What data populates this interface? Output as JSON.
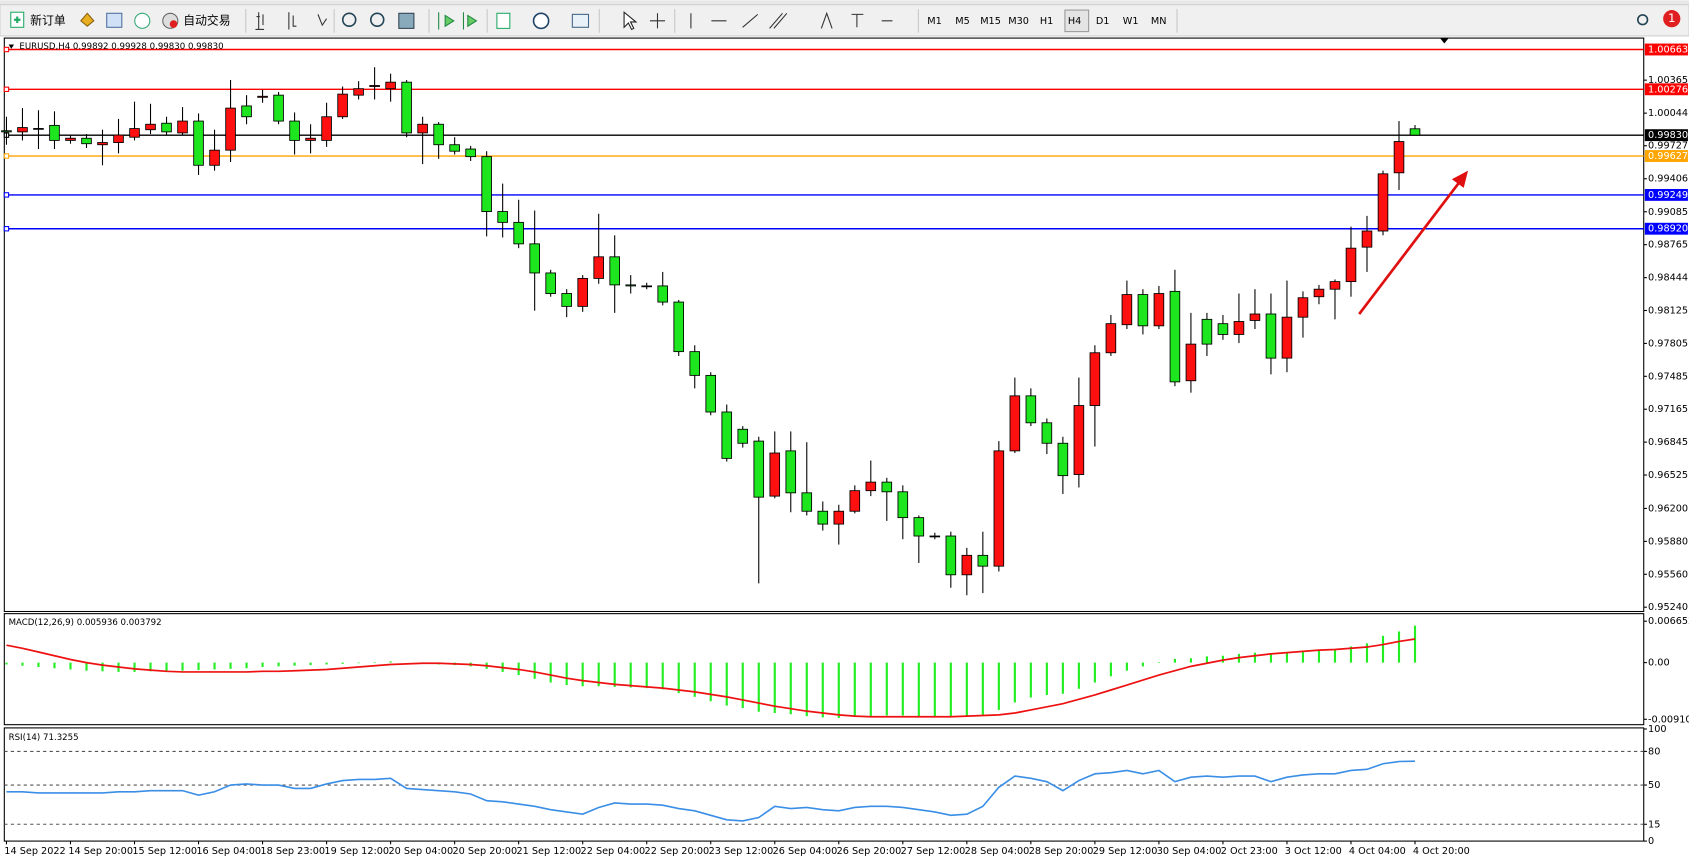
{
  "toolbar": {
    "new_order": "新订单",
    "auto_trading": "自动交易",
    "timeframes": [
      "M1",
      "M5",
      "M15",
      "M30",
      "H1",
      "H4",
      "D1",
      "W1",
      "MN"
    ],
    "badge": "1"
  },
  "chart_data": [
    {
      "type": "candlestick",
      "title": "EURUSD,H4  0.99892 0.99928 0.99830 0.99830",
      "categories": [
        "14 Sep 2022",
        null,
        null,
        null,
        "14 Sep 20:00",
        null,
        null,
        null,
        "15 Sep 12:00",
        null,
        null,
        null,
        "16 Sep 04:00",
        null,
        null,
        null,
        "18 Sep 23:00",
        null,
        null,
        null,
        "19 Sep 12:00",
        null,
        null,
        null,
        "20 Sep 04:00",
        null,
        null,
        null,
        "20 Sep 20:00",
        null,
        null,
        null,
        "21 Sep 12:00",
        null,
        null,
        null,
        "22 Sep 04:00",
        null,
        null,
        null,
        "22 Sep 20:00",
        null,
        null,
        null,
        "23 Sep 12:00",
        null,
        null,
        null,
        "26 Sep 04:00",
        null,
        null,
        null,
        "26 Sep 20:00",
        null,
        null,
        null,
        "27 Sep 12:00",
        null,
        null,
        null,
        "28 Sep 04:00",
        null,
        null,
        null,
        "28 Sep 20:00",
        null,
        null,
        null,
        "29 Sep 12:00",
        null,
        null,
        null,
        "30 Sep 04:00",
        null,
        null,
        null,
        "2 Oct 23:00",
        null,
        null,
        null,
        "3 Oct 12:00",
        null,
        null,
        null,
        "4 Oct 04:00",
        null,
        null,
        null,
        "4 Oct 20:00"
      ],
      "open": [
        0.99873,
        0.99862,
        0.99894,
        0.99925,
        0.99779,
        0.998,
        0.99737,
        0.99758,
        0.9981,
        0.99883,
        0.99946,
        0.99852,
        0.99967,
        0.99537,
        0.99684,
        1.00114,
        1.00198,
        1.00219,
        0.99967,
        0.99779,
        0.99779,
        1.00009,
        1.00219,
        1.00303,
        1.00282,
        1.00345,
        0.99852,
        0.99936,
        0.99737,
        0.99695,
        0.99621,
        0.99087,
        0.98982,
        0.98773,
        0.9849,
        0.9829,
        0.98165,
        0.98437,
        0.98647,
        0.98374,
        0.98364,
        0.98364,
        0.98207,
        0.97725,
        0.97494,
        0.97138,
        0.9697,
        0.96855,
        0.9632,
        0.9676,
        0.96352,
        0.96173,
        0.96048,
        0.96173,
        0.96373,
        0.96456,
        0.96362,
        0.96111,
        0.95932,
        0.95932,
        0.95555,
        0.95744,
        0.95639,
        0.9676,
        0.97295,
        0.97033,
        0.96834,
        0.9653,
        0.97201,
        0.97714,
        0.97987,
        0.9828,
        0.97976,
        0.98311,
        0.97442,
        0.98039,
        0.97997,
        0.97892,
        0.98028,
        0.98091,
        0.97662,
        0.9806,
        0.98259,
        0.98332,
        0.98406,
        0.98741,
        0.98898,
        0.99464,
        0.99892
      ],
      "high": [
        1.00009,
        1.00093,
        1.00072,
        1.00062,
        0.99831,
        0.99841,
        0.99883,
        0.99988,
        1.00156,
        1.00135,
        1.00009,
        1.00103,
        1.00041,
        0.99883,
        1.00366,
        1.00219,
        1.00271,
        1.0025,
        1.00051,
        0.99936,
        1.00145,
        1.00303,
        1.00355,
        1.00491,
        1.00428,
        1.00366,
        1.00009,
        0.99957,
        0.9981,
        0.99726,
        0.99674,
        0.99359,
        0.99202,
        0.99097,
        0.98521,
        0.98332,
        0.98469,
        0.99066,
        0.98856,
        0.98469,
        0.98395,
        0.985,
        0.98228,
        0.97787,
        0.97525,
        0.97211,
        0.97001,
        0.96897,
        0.96949,
        0.96949,
        0.96844,
        0.96268,
        0.96236,
        0.96425,
        0.96666,
        0.96498,
        0.96425,
        0.96132,
        0.95964,
        0.95974,
        0.95817,
        0.95974,
        0.96855,
        0.97473,
        0.97368,
        0.97075,
        0.96897,
        0.97473,
        0.97787,
        0.98081,
        0.98416,
        0.98332,
        0.98364,
        0.98521,
        0.98102,
        0.98102,
        0.98081,
        0.9829,
        0.98332,
        0.9829,
        0.98416,
        0.98311,
        0.98374,
        0.98427,
        0.9894,
        0.99045,
        0.99485,
        0.99967,
        0.99928
      ],
      "low": [
        0.99737,
        0.99779,
        0.99695,
        0.99695,
        0.99747,
        0.99705,
        0.99537,
        0.99653,
        0.99779,
        0.99841,
        0.99831,
        0.99831,
        0.99443,
        0.99485,
        0.99569,
        0.99936,
        1.00145,
        0.99936,
        0.99642,
        0.99653,
        0.99716,
        0.99988,
        1.00177,
        1.00177,
        1.00156,
        0.9981,
        0.99548,
        0.996,
        0.99642,
        0.99579,
        0.98846,
        0.98835,
        0.98731,
        0.98123,
        0.98259,
        0.9806,
        0.98112,
        0.98385,
        0.98102,
        0.9829,
        0.98332,
        0.98175,
        0.97683,
        0.97368,
        0.97106,
        0.96656,
        0.96792,
        0.95471,
        0.96299,
        0.96163,
        0.96132,
        0.95985,
        0.95849,
        0.96152,
        0.9632,
        0.96079,
        0.95901,
        0.9567,
        0.95901,
        0.95429,
        0.95356,
        0.95377,
        0.95587,
        0.96739,
        0.97001,
        0.96729,
        0.96341,
        0.96404,
        0.96802,
        0.97683,
        0.97945,
        0.97892,
        0.97945,
        0.97389,
        0.97326,
        0.97683,
        0.9784,
        0.97808,
        0.97945,
        0.97504,
        0.97525,
        0.97861,
        0.98186,
        0.98039,
        0.98259,
        0.985,
        0.98856,
        0.99297,
        0.9983
      ],
      "close": [
        0.99862,
        0.99904,
        0.99895,
        0.99779,
        0.998,
        0.99747,
        0.99758,
        0.99831,
        0.99894,
        0.99936,
        0.99862,
        0.99967,
        0.99537,
        0.99684,
        1.00093,
        1.00009,
        1.00208,
        0.99967,
        0.99779,
        0.998,
        1.00009,
        1.00229,
        1.00282,
        1.00313,
        1.00345,
        0.99852,
        0.99936,
        0.99737,
        0.99674,
        0.99621,
        0.99087,
        0.98982,
        0.98773,
        0.9849,
        0.9829,
        0.98165,
        0.98437,
        0.98647,
        0.98374,
        0.98364,
        0.98364,
        0.98207,
        0.97725,
        0.97494,
        0.97138,
        0.96687,
        0.96834,
        0.9631,
        0.96739,
        0.96352,
        0.96173,
        0.96048,
        0.96173,
        0.96373,
        0.96456,
        0.96362,
        0.96111,
        0.95932,
        0.95932,
        0.95555,
        0.95744,
        0.95639,
        0.9676,
        0.97295,
        0.97033,
        0.96834,
        0.96519,
        0.97201,
        0.97714,
        0.97997,
        0.9828,
        0.97976,
        0.9829,
        0.97431,
        0.97798,
        0.97798,
        0.97892,
        0.98018,
        0.98091,
        0.97662,
        0.9806,
        0.98249,
        0.98332,
        0.98406,
        0.98731,
        0.98898,
        0.99454,
        0.99768,
        0.9983
      ],
      "up_color": "#ff1010",
      "down_color": "#1ee61e",
      "ylim": [
        0.95198,
        1.00753
      ],
      "yticks": [
        1.00365,
        1.00044,
        0.99727,
        0.99406,
        0.99085,
        0.98765,
        0.98444,
        0.98125,
        0.97805,
        0.97485,
        0.97165,
        0.96845,
        0.96525,
        {
          "value": 0.962,
          "label": "0.96200"
        },
        {
          "value": 0.9588,
          "label": "0.95880"
        },
        {
          "value": 0.9556,
          "label": "0.95560"
        },
        {
          "value": 0.9524,
          "label": "0.95240"
        }
      ],
      "hlines": [
        {
          "value": 1.00663,
          "color": "#ff0000"
        },
        {
          "value": 1.00276,
          "color": "#ff0000"
        },
        {
          "value": 0.9983,
          "label": "0.99830",
          "color": "#000000"
        },
        {
          "value": 0.99627,
          "color": "#ffa500"
        },
        {
          "value": 0.99249,
          "color": "#0000ff"
        },
        {
          "value": 0.9892,
          "label": "0.98920",
          "color": "#0000ff"
        }
      ]
    },
    {
      "type": "macd",
      "title": "MACD(12,26,9) 0.005936 0.003792",
      "histogram": {
        "color": "#22ee22",
        "values": [
          -0.0003,
          -0.0005,
          -0.0007,
          -0.0009,
          -0.0011,
          -0.0013,
          -0.0014,
          -0.0015,
          -0.0015,
          -0.0014,
          -0.0014,
          -0.0013,
          -0.0012,
          -0.0011,
          -0.001,
          -0.0009,
          -0.0007,
          -0.0006,
          -0.0005,
          -0.0004,
          -0.0003,
          -0.0002,
          -0.0001,
          0.0001,
          0.0002,
          0,
          -0.0002,
          -0.0003,
          -0.0004,
          -0.0006,
          -0.001,
          -0.0015,
          -0.002,
          -0.0026,
          -0.0032,
          -0.0036,
          -0.0038,
          -0.0038,
          -0.0039,
          -0.004,
          -0.0041,
          -0.0043,
          -0.0049,
          -0.0055,
          -0.0062,
          -0.0069,
          -0.0073,
          -0.0079,
          -0.0081,
          -0.0083,
          -0.0086,
          -0.0088,
          -0.0089,
          -0.0087,
          -0.0086,
          -0.0085,
          -0.0085,
          -0.0086,
          -0.0086,
          -0.0087,
          -0.0086,
          -0.0084,
          -0.0076,
          -0.0064,
          -0.0056,
          -0.0052,
          -0.005,
          -0.0042,
          -0.0032,
          -0.0022,
          -0.0013,
          -0.0006,
          0.0001,
          0.0006,
          0.0007,
          0.001,
          0.0011,
          0.0014,
          0.0016,
          0.0015,
          0.0017,
          0.0019,
          0.002,
          0.0021,
          0.0026,
          0.0031,
          0.0043,
          0.005,
          0.005936
        ]
      },
      "signal": {
        "color": "#ee1111",
        "values": [
          0.0028,
          0.0023,
          0.0017,
          0.0011,
          0.0005,
          0,
          -0.0004,
          -0.0007,
          -0.001,
          -0.0012,
          -0.0014,
          -0.0015,
          -0.0015,
          -0.0015,
          -0.0015,
          -0.0015,
          -0.0014,
          -0.0014,
          -0.0013,
          -0.0012,
          -0.0011,
          -0.0009,
          -0.0007,
          -0.0005,
          -0.0003,
          -0.0002,
          -0.0001,
          -0.0001,
          -0.0002,
          -0.0003,
          -0.0005,
          -0.0008,
          -0.0011,
          -0.0015,
          -0.002,
          -0.0025,
          -0.0029,
          -0.0032,
          -0.0035,
          -0.0037,
          -0.0039,
          -0.0041,
          -0.0044,
          -0.0047,
          -0.0051,
          -0.0055,
          -0.006,
          -0.0065,
          -0.007,
          -0.0074,
          -0.0078,
          -0.0081,
          -0.0084,
          -0.0086,
          -0.0087,
          -0.0087,
          -0.0087,
          -0.0087,
          -0.0087,
          -0.0087,
          -0.0086,
          -0.0085,
          -0.0084,
          -0.0081,
          -0.0076,
          -0.0071,
          -0.0066,
          -0.0059,
          -0.0052,
          -0.0044,
          -0.0036,
          -0.0028,
          -0.002,
          -0.0013,
          -0.0006,
          -0.0001,
          0.0004,
          0.0008,
          0.0011,
          0.0014,
          0.0016,
          0.0018,
          0.002,
          0.0021,
          0.0023,
          0.0025,
          0.0029,
          0.0034,
          0.003792
        ]
      },
      "ylim": [
        -0.00997,
        0.00769
      ],
      "yticks": [
        0.006652,
        {
          "value": 0,
          "label": "0.00"
        },
        -0.009104
      ]
    },
    {
      "type": "line",
      "title": "RSI(14) 71.3255",
      "color": "#3a8ee6",
      "values": [
        44,
        44,
        43,
        43,
        43,
        43,
        43,
        44,
        44,
        45,
        45,
        45,
        41,
        44,
        50,
        51,
        50,
        50,
        47,
        47,
        51,
        54,
        55,
        55,
        56,
        47,
        46,
        45,
        44,
        42,
        36,
        35,
        33,
        31,
        28,
        26,
        24,
        30,
        34,
        33,
        33,
        32,
        29,
        27,
        23,
        19,
        18,
        21,
        31,
        29,
        30,
        28,
        27,
        30,
        31,
        31,
        30,
        28,
        26,
        23,
        24,
        31,
        48,
        58,
        56,
        53,
        45,
        54,
        60,
        61,
        63,
        60,
        63,
        53,
        57,
        58,
        57,
        58,
        58,
        53,
        57,
        59,
        60,
        60,
        63,
        64,
        69,
        71,
        71.3255
      ],
      "ylim": [
        0,
        100
      ],
      "yticks": [
        100,
        80,
        50,
        15,
        0
      ]
    }
  ]
}
